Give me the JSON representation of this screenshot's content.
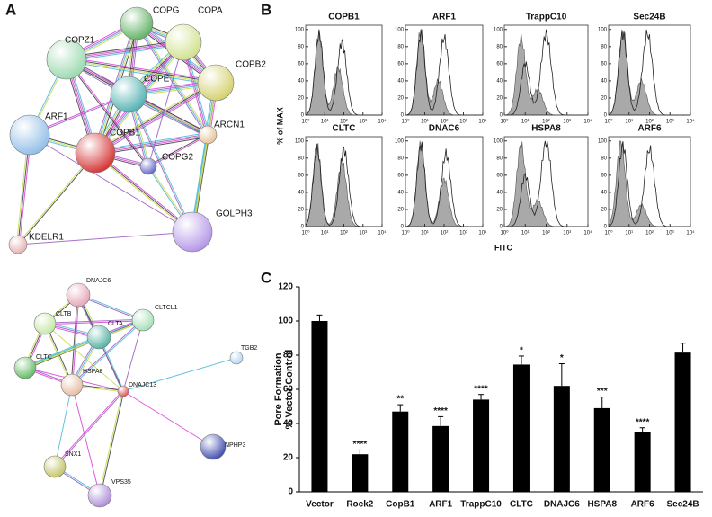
{
  "panel_labels": [
    "A",
    "B",
    "C"
  ],
  "network_top": {
    "nodes": [
      "COPG",
      "COPA",
      "COPZ1",
      "COPB2",
      "COPE",
      "ARF1",
      "COPB1",
      "ARCN1",
      "COPG2",
      "GOLPH3",
      "KDELR1"
    ]
  },
  "network_bottom": {
    "nodes": [
      "DNAJC6",
      "CLTB",
      "CLTA",
      "CLTCL1",
      "CLTC",
      "HSPA8",
      "DNAJC13",
      "TGB2",
      "SNX1",
      "NPHP3",
      "VPS35"
    ]
  },
  "flow": {
    "titles": [
      "COPB1",
      "ARF1",
      "TrappC10",
      "Sec24B",
      "CLTC",
      "DNAC6",
      "HSPA8",
      "ARF6"
    ],
    "y_label": "% of MAX",
    "x_label": "FITC",
    "ylim": [
      0,
      105
    ],
    "yticks": [
      0,
      20,
      40,
      60,
      80,
      100
    ],
    "xlim": [
      1,
      10000
    ],
    "log_x": true,
    "xticks": [
      {
        "value": 1,
        "label": "10⁰"
      },
      {
        "value": 10,
        "label": "10¹"
      },
      {
        "value": 100,
        "label": "10²"
      },
      {
        "value": 1000,
        "label": "10³"
      },
      {
        "value": 10000,
        "label": "10⁴"
      }
    ]
  },
  "chart_data": {
    "type": "bar",
    "y_label": [
      "Pore Formation",
      "% Vector Control"
    ],
    "categories": [
      "Vector",
      "Rock2",
      "CopB1",
      "ARF1",
      "TrappC10",
      "CLTC",
      "DNAJC6",
      "HSPA8",
      "ARF6",
      "Sec24B"
    ],
    "values": [
      100,
      22,
      47,
      38.5,
      54,
      74.5,
      62,
      49,
      35,
      81.5
    ],
    "errors": [
      3.5,
      2.5,
      4,
      5.5,
      3,
      5,
      13,
      6.5,
      2.5,
      5.5
    ],
    "significance": [
      null,
      "****",
      "**",
      "****",
      "****",
      "*",
      "*",
      "***",
      "****",
      null
    ],
    "color": "#000000",
    "ylim": [
      0,
      120
    ],
    "yticks": [
      0,
      20,
      40,
      60,
      80,
      100,
      120
    ]
  }
}
